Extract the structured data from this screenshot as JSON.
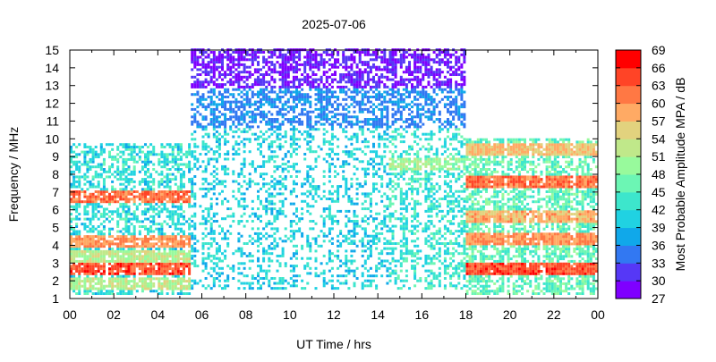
{
  "chart_data": {
    "type": "heatmap",
    "title": "2025-07-06",
    "xlabel": "UT Time / hrs",
    "ylabel": "Frequency / MHz",
    "xlim": [
      0,
      24
    ],
    "ylim": [
      1,
      15
    ],
    "xticks": [
      "00",
      "02",
      "04",
      "06",
      "08",
      "10",
      "12",
      "14",
      "16",
      "18",
      "20",
      "22",
      "00"
    ],
    "yticks": [
      "1",
      "2",
      "3",
      "4",
      "5",
      "6",
      "7",
      "8",
      "9",
      "10",
      "11",
      "12",
      "13",
      "14",
      "15"
    ],
    "colorbar": {
      "label": "Most Probable Amplitude MPA / dB",
      "range": [
        27,
        69
      ],
      "ticks": [
        "27",
        "30",
        "33",
        "36",
        "39",
        "42",
        "45",
        "48",
        "51",
        "54",
        "57",
        "60",
        "63",
        "66",
        "69"
      ],
      "colors": [
        "#7f00ff",
        "#5638f6",
        "#3278f2",
        "#10a8ea",
        "#20d2e2",
        "#3de6cc",
        "#6cf6b4",
        "#98fa9c",
        "#c0e88a",
        "#e2d27e",
        "#ffaa64",
        "#ff7844",
        "#ff4426",
        "#ff0000"
      ]
    },
    "regions": [
      {
        "t": [
          0,
          5.5
        ],
        "f": [
          1.2,
          9.7
        ],
        "base_db": 42,
        "density": 0.55,
        "bands": [
          {
            "f": 2.6,
            "db": 64
          },
          {
            "f": 4.2,
            "db": 60
          },
          {
            "f": 6.7,
            "db": 62
          },
          {
            "f": 3.3,
            "db": 52
          },
          {
            "f": 1.8,
            "db": 52
          }
        ]
      },
      {
        "t": [
          5.5,
          14.5
        ],
        "f": [
          1.5,
          15
        ],
        "base_db": 41,
        "density": 0.35,
        "bands": [
          {
            "f": 14.2,
            "db": 28
          },
          {
            "f": 13.6,
            "db": 29
          },
          {
            "f": 11.5,
            "db": 35
          },
          {
            "f": 12.2,
            "db": 35
          }
        ]
      },
      {
        "t": [
          14.5,
          18
        ],
        "f": [
          1.5,
          15
        ],
        "base_db": 43,
        "density": 0.45,
        "bands": [
          {
            "f": 14.2,
            "db": 29
          },
          {
            "f": 13.3,
            "db": 32
          },
          {
            "f": 11.5,
            "db": 36
          },
          {
            "f": 8.5,
            "db": 50
          }
        ]
      },
      {
        "t": [
          18,
          24
        ],
        "f": [
          1.2,
          10
        ],
        "base_db": 46,
        "density": 0.7,
        "bands": [
          {
            "f": 2.6,
            "db": 64
          },
          {
            "f": 4.3,
            "db": 60
          },
          {
            "f": 5.5,
            "db": 58
          },
          {
            "f": 7.5,
            "db": 62
          },
          {
            "f": 9.3,
            "db": 57
          }
        ]
      }
    ]
  }
}
